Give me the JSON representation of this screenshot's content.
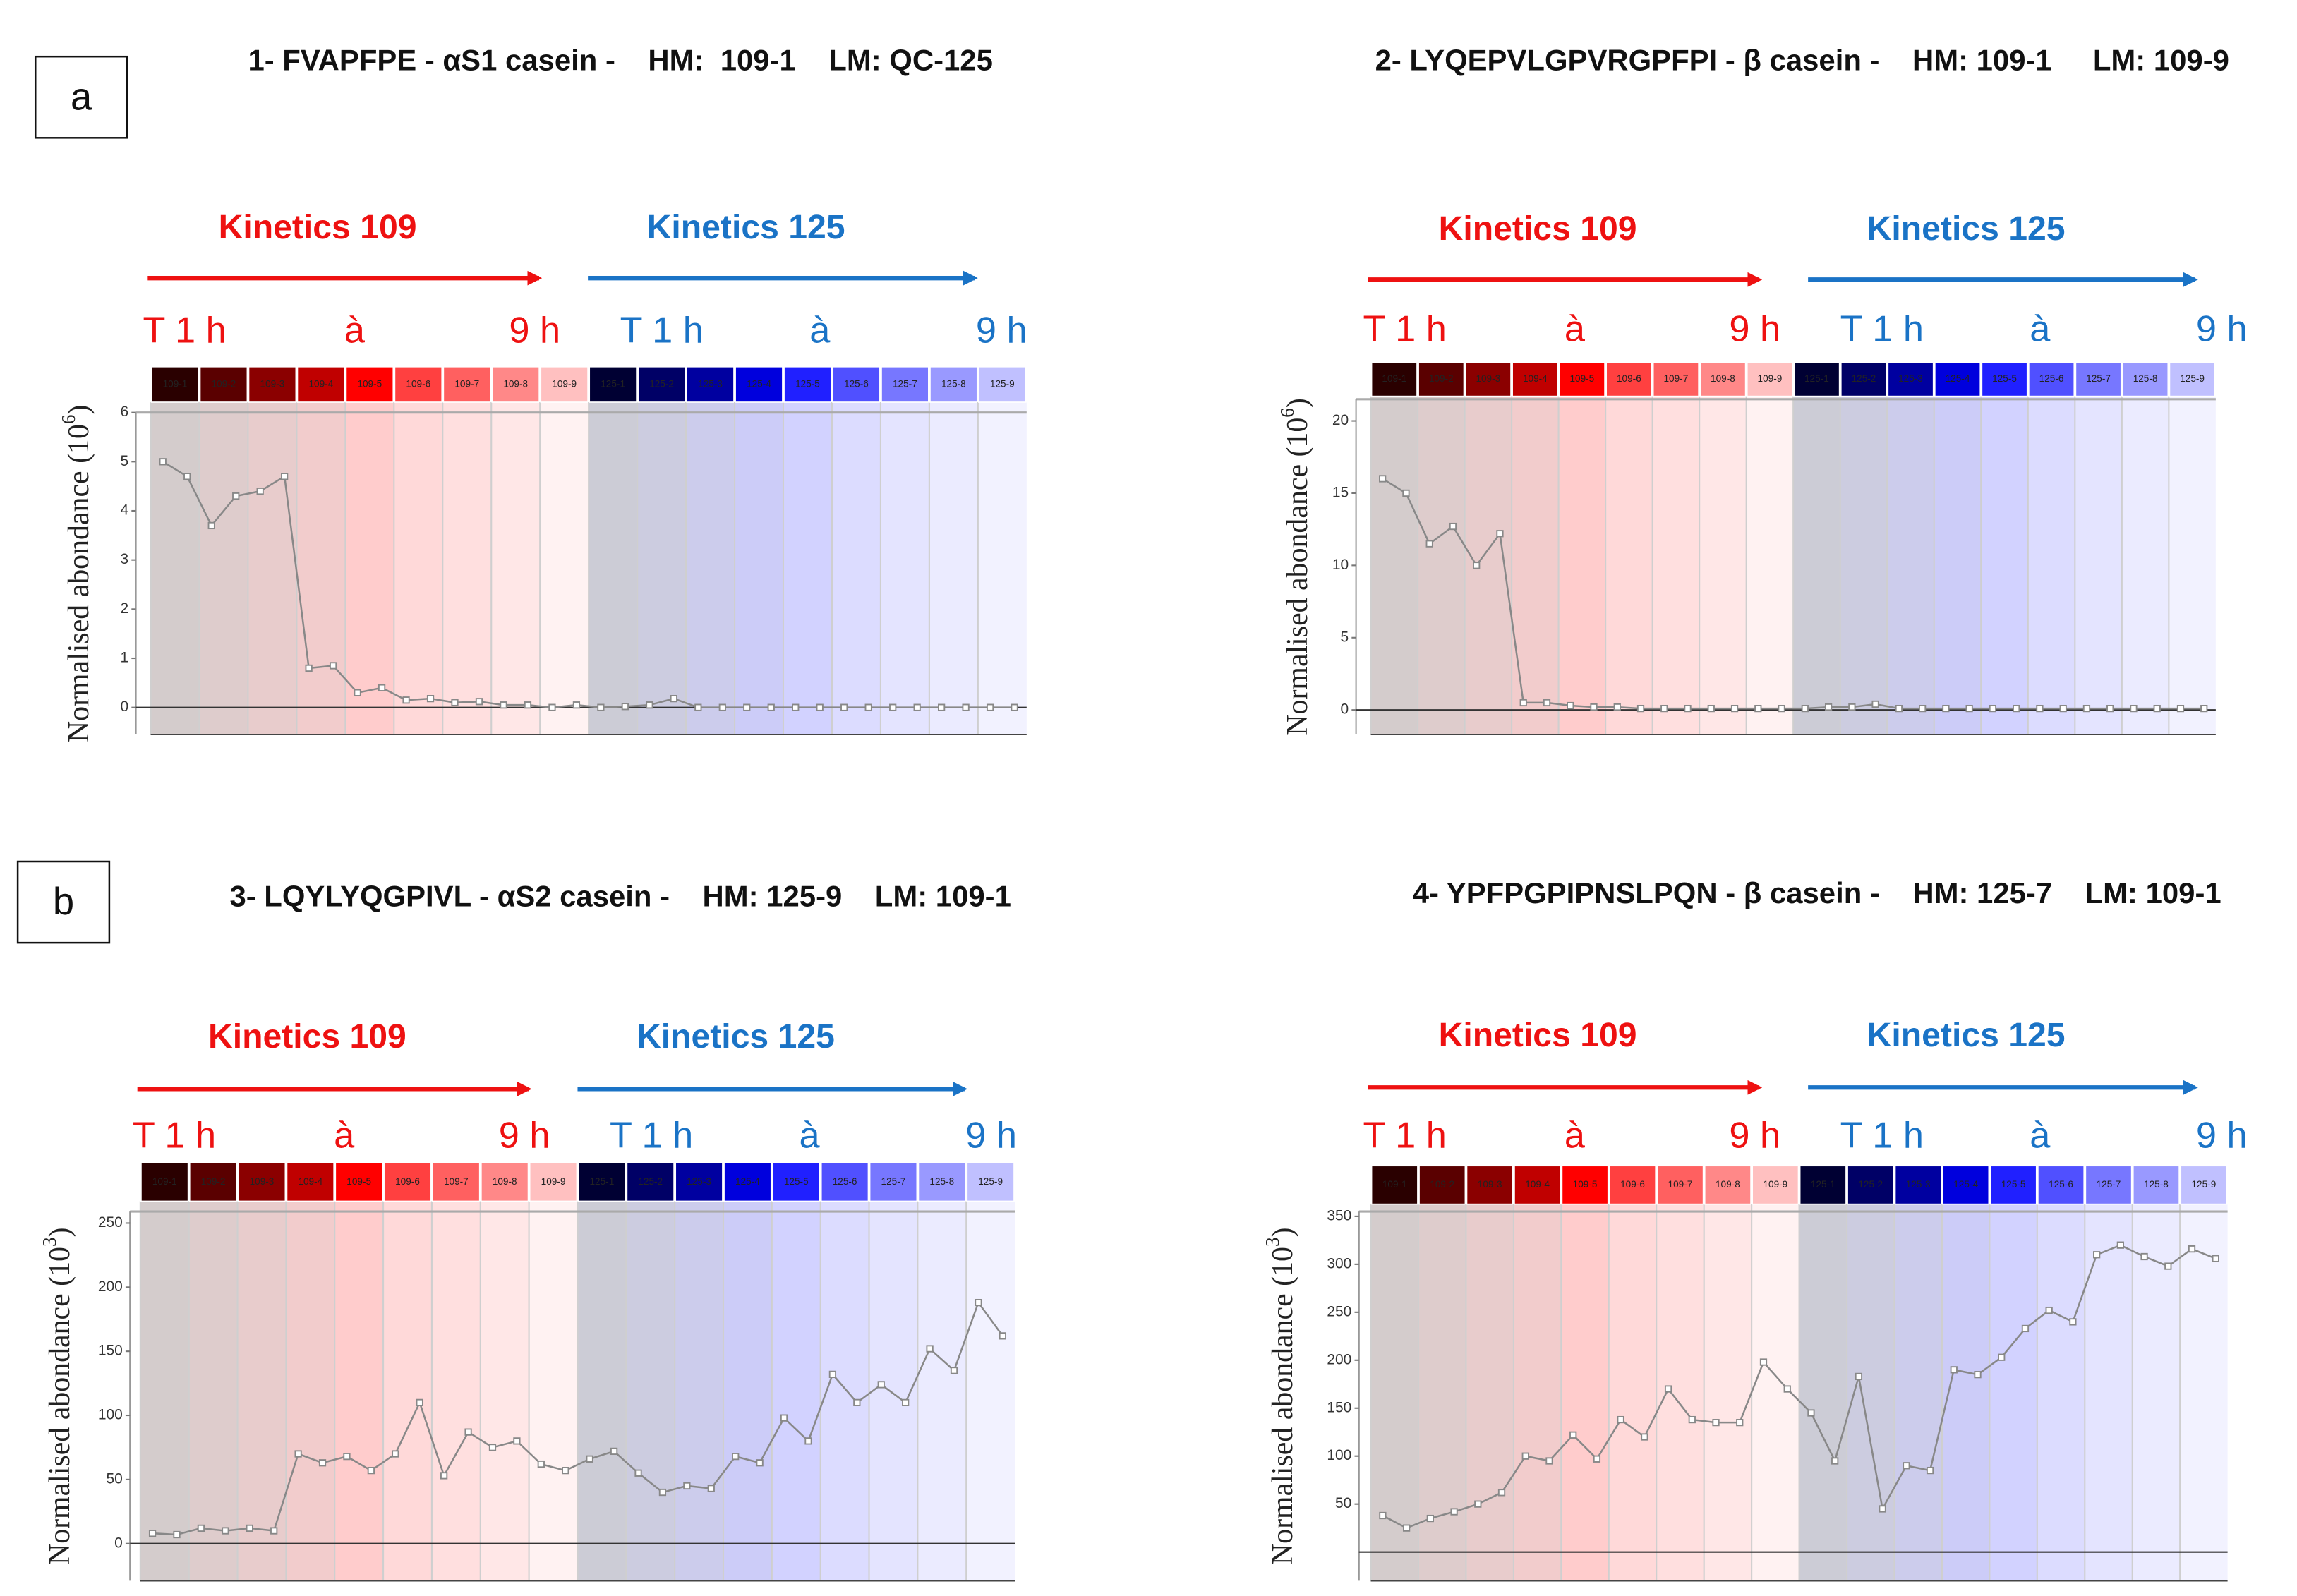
{
  "panel_labels": [
    "a",
    "b"
  ],
  "chart_data": [
    {
      "type": "line",
      "title": "1- FVAPFPE - αS1 casein -    HM:  109-1    LM: QC-125",
      "kinetics": [
        "Kinetics 109",
        "Kinetics 125"
      ],
      "kinetics_colors": [
        "#ee1111",
        "#1a73c6"
      ],
      "time_labels": [
        "T 1 h",
        "à",
        "9 h",
        "T 1 h",
        "à",
        "9 h"
      ],
      "ylabel": [
        "Normalised abondance (10",
        "6",
        ")"
      ],
      "columns": [
        "109-1",
        "109-2",
        "109-3",
        "109-4",
        "109-5",
        "109-6",
        "109-7",
        "109-8",
        "109-9",
        "125-1",
        "125-2",
        "125-3",
        "125-4",
        "125-5",
        "125-6",
        "125-7",
        "125-8",
        "125-9"
      ],
      "column_colors": [
        "#2a0000",
        "#5a0000",
        "#8b0000",
        "#c00000",
        "#ff0000",
        "#ff4040",
        "#ff6060",
        "#ff8888",
        "#ffc0c0",
        "#000033",
        "#000066",
        "#0000a0",
        "#0000dd",
        "#2020ff",
        "#5050ff",
        "#7777ff",
        "#9999ff",
        "#c0c0ff"
      ],
      "values": [
        5.0,
        4.7,
        3.7,
        4.3,
        4.4,
        4.7,
        0.8,
        0.85,
        0.3,
        0.4,
        0.15,
        0.18,
        0.1,
        0.12,
        0.05,
        0.05,
        0,
        0.05,
        0,
        0.02,
        0.05,
        0.18,
        0,
        0,
        0,
        0,
        0,
        0,
        0,
        0,
        0,
        0,
        0,
        0,
        0,
        0
      ],
      "color": "#888888",
      "ylim": [
        -0.55,
        6
      ],
      "yticks": [
        0,
        1,
        2,
        3,
        4,
        5,
        6
      ]
    },
    {
      "type": "line",
      "title": "2- LYQEPVLGPVRGPFPI - β casein -    HM: 109-1     LM: 109-9",
      "kinetics": [
        "Kinetics 109",
        "Kinetics 125"
      ],
      "kinetics_colors": [
        "#ee1111",
        "#1a73c6"
      ],
      "time_labels": [
        "T 1 h",
        "à",
        "9 h",
        "T 1 h",
        "à",
        "9 h"
      ],
      "ylabel": [
        "Normalised abondance (10",
        "6",
        ")"
      ],
      "columns": [
        "109-1",
        "109-2",
        "109-3",
        "109-4",
        "109-5",
        "109-6",
        "109-7",
        "109-8",
        "109-9",
        "125-1",
        "125-2",
        "125-3",
        "125-4",
        "125-5",
        "125-6",
        "125-7",
        "125-8",
        "125-9"
      ],
      "column_colors": [
        "#2a0000",
        "#5a0000",
        "#8b0000",
        "#c00000",
        "#ff0000",
        "#ff4040",
        "#ff6060",
        "#ff8888",
        "#ffc0c0",
        "#000033",
        "#000066",
        "#0000a0",
        "#0000dd",
        "#2020ff",
        "#5050ff",
        "#7777ff",
        "#9999ff",
        "#c0c0ff"
      ],
      "values": [
        16,
        15,
        11.5,
        12.7,
        10,
        12.2,
        0.5,
        0.5,
        0.3,
        0.2,
        0.2,
        0.1,
        0.1,
        0.1,
        0.1,
        0.1,
        0.1,
        0.1,
        0.1,
        0.2,
        0.2,
        0.4,
        0.1,
        0.1,
        0.1,
        0.1,
        0.1,
        0.1,
        0.1,
        0.1,
        0.1,
        0.1,
        0.1,
        0.1,
        0.1,
        0.1
      ],
      "color": "#888888",
      "ylim": [
        -1.7,
        21.5
      ],
      "yticks": [
        0,
        5,
        10,
        15,
        20
      ]
    },
    {
      "type": "line",
      "title": "3- LQYLYQGPIVL - αS2 casein -    HM: 125-9    LM: 109-1",
      "kinetics": [
        "Kinetics 109",
        "Kinetics 125"
      ],
      "kinetics_colors": [
        "#ee1111",
        "#1a73c6"
      ],
      "time_labels": [
        "T 1 h",
        "à",
        "9 h",
        "T 1 h",
        "à",
        "9 h"
      ],
      "ylabel": [
        "Normalised abondance (10",
        "3",
        ")"
      ],
      "columns": [
        "109-1",
        "109-2",
        "109-3",
        "109-4",
        "109-5",
        "109-6",
        "109-7",
        "109-8",
        "109-9",
        "125-1",
        "125-2",
        "125-3",
        "125-4",
        "125-5",
        "125-6",
        "125-7",
        "125-8",
        "125-9"
      ],
      "column_colors": [
        "#2a0000",
        "#5a0000",
        "#8b0000",
        "#c00000",
        "#ff0000",
        "#ff4040",
        "#ff6060",
        "#ff8888",
        "#ffc0c0",
        "#000033",
        "#000066",
        "#0000a0",
        "#0000dd",
        "#2020ff",
        "#5050ff",
        "#7777ff",
        "#9999ff",
        "#c0c0ff"
      ],
      "values": [
        8,
        7,
        12,
        10,
        12,
        10,
        70,
        63,
        68,
        57,
        70,
        110,
        53,
        87,
        75,
        80,
        62,
        57,
        66,
        72,
        55,
        40,
        45,
        43,
        68,
        63,
        98,
        80,
        132,
        110,
        124,
        110,
        152,
        135,
        188,
        162
      ],
      "color": "#888888",
      "ylim": [
        -29,
        259
      ],
      "yticks": [
        0,
        50,
        100,
        150,
        200,
        250
      ]
    },
    {
      "type": "line",
      "title": "4- YPFPGPIPNSLPQN - β casein -    HM: 125-7    LM: 109-1",
      "kinetics": [
        "Kinetics 109",
        "Kinetics 125"
      ],
      "kinetics_colors": [
        "#ee1111",
        "#1a73c6"
      ],
      "time_labels": [
        "T 1 h",
        "à",
        "9 h",
        "T 1 h",
        "à",
        "9 h"
      ],
      "ylabel": [
        "Normalised abondance (10",
        "3",
        ")"
      ],
      "columns": [
        "109-1",
        "109-2",
        "109-3",
        "109-4",
        "109-5",
        "109-6",
        "109-7",
        "109-8",
        "109-9",
        "125-1",
        "125-2",
        "125-3",
        "125-4",
        "125-5",
        "125-6",
        "125-7",
        "125-8",
        "125-9"
      ],
      "column_colors": [
        "#2a0000",
        "#5a0000",
        "#8b0000",
        "#c00000",
        "#ff0000",
        "#ff4040",
        "#ff6060",
        "#ff8888",
        "#ffc0c0",
        "#000033",
        "#000066",
        "#0000a0",
        "#0000dd",
        "#2020ff",
        "#5050ff",
        "#7777ff",
        "#9999ff",
        "#c0c0ff"
      ],
      "values": [
        38,
        25,
        35,
        42,
        50,
        62,
        100,
        95,
        122,
        97,
        138,
        120,
        170,
        138,
        135,
        135,
        198,
        170,
        145,
        95,
        183,
        45,
        90,
        85,
        190,
        185,
        203,
        233,
        252,
        240,
        310,
        320,
        308,
        298,
        316,
        306
      ],
      "color": "#888888",
      "ylim": [
        -30,
        355
      ],
      "yticks": [
        50,
        100,
        150,
        200,
        250,
        300,
        350
      ]
    }
  ]
}
